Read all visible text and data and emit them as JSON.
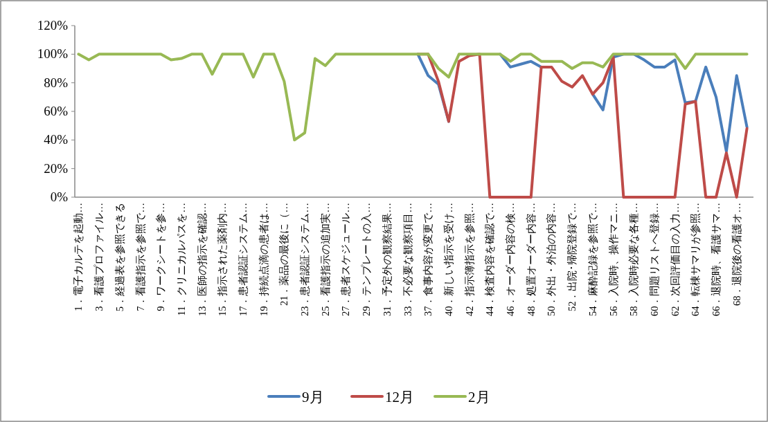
{
  "chart_data": {
    "type": "line",
    "categories": [
      "1．電子カルテを起動…",
      null,
      "3．看護プロファイル…",
      null,
      "5．経過表を参照できる",
      null,
      "7．看護指示を参照で…",
      null,
      "9．ワークシートを参…",
      null,
      "11．クリニカルパスを…",
      null,
      "13．医師の指示を確認…",
      null,
      "15．指示された薬剤内…",
      null,
      "17．患者認証システム…",
      null,
      "19．持続点滴の患者は…",
      null,
      "21．薬品の最後に（…",
      null,
      "23．患者認証システム…",
      null,
      "25．看護指示の追加実…",
      null,
      "27．患者スケジュール…",
      null,
      "29．テンプレートの入…",
      null,
      "31．予定外の観察結果…",
      null,
      "33．不必要な観察項目…",
      null,
      "37．食事内容が変更で…",
      null,
      "40．新しい指示を受け…",
      null,
      "42．指示簿指示を参照…",
      null,
      "44．検査内容を確認で…",
      null,
      "46．オーダー内容の検…",
      null,
      "48．処置オーダー内容…",
      null,
      "50．外出・外泊の内容…",
      null,
      "52．出院･帰院登録で…",
      null,
      "54．麻酔記録を参照で…",
      null,
      "56．入院時、操作マニ…",
      null,
      "58．入院時必要な各種…",
      null,
      "60．問題リストへ登録…",
      null,
      "62．次回評価目の入力…",
      null,
      "64．転棟サマリが参照…",
      null,
      "66．退院時、看護サマ…",
      null,
      "68．退院後の看護オ…",
      null
    ],
    "series": [
      {
        "name": "9月",
        "color": "#4a7ebb",
        "values": [
          null,
          null,
          null,
          null,
          null,
          null,
          null,
          null,
          null,
          null,
          null,
          null,
          null,
          null,
          null,
          null,
          null,
          null,
          null,
          null,
          null,
          null,
          null,
          null,
          null,
          null,
          null,
          null,
          null,
          null,
          null,
          null,
          null,
          100,
          85,
          79,
          53,
          null,
          null,
          null,
          null,
          100,
          91,
          93,
          95,
          91,
          null,
          null,
          null,
          null,
          72,
          61,
          98,
          100,
          100,
          96,
          91,
          91,
          96,
          66,
          67,
          91,
          70,
          32,
          85,
          49
        ]
      },
      {
        "name": "12月",
        "color": "#be4b48",
        "values": [
          null,
          null,
          null,
          null,
          null,
          null,
          null,
          null,
          null,
          null,
          null,
          null,
          null,
          null,
          null,
          null,
          null,
          null,
          null,
          null,
          null,
          null,
          null,
          null,
          null,
          null,
          null,
          null,
          null,
          null,
          null,
          null,
          null,
          100,
          100,
          81,
          53,
          95,
          99,
          100,
          0,
          0,
          0,
          0,
          0,
          91,
          91,
          81,
          77,
          85,
          72,
          80,
          98,
          0,
          0,
          0,
          0,
          0,
          0,
          65,
          67,
          0,
          0,
          31,
          0,
          48
        ]
      },
      {
        "name": "2月",
        "color": "#98b954",
        "values": [
          100,
          96,
          100,
          100,
          100,
          100,
          100,
          100,
          100,
          96,
          97,
          100,
          100,
          86,
          100,
          100,
          100,
          84,
          100,
          100,
          81,
          40,
          45,
          97,
          92,
          100,
          100,
          100,
          100,
          100,
          100,
          100,
          100,
          100,
          100,
          90,
          84,
          100,
          100,
          100,
          100,
          100,
          95,
          100,
          100,
          95,
          95,
          95,
          90,
          94,
          94,
          91,
          100,
          100,
          100,
          100,
          100,
          100,
          100,
          90,
          100,
          100,
          100,
          100,
          100,
          100
        ]
      }
    ],
    "ylim": [
      0,
      120
    ],
    "yticks": [
      {
        "value": 0,
        "label": "0%"
      },
      {
        "value": 20,
        "label": "20%"
      },
      {
        "value": 40,
        "label": "40%"
      },
      {
        "value": 60,
        "label": "60%"
      },
      {
        "value": 80,
        "label": "80%"
      },
      {
        "value": 100,
        "label": "100%"
      },
      {
        "value": 120,
        "label": "120%"
      }
    ],
    "grid": false,
    "legend": "bottom",
    "marker": "none",
    "line_style": "solid"
  }
}
